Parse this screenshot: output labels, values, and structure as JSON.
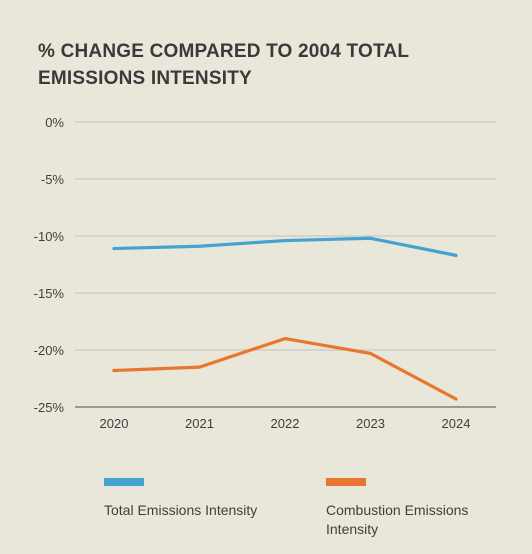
{
  "chart_data": {
    "type": "line",
    "title": "% CHANGE COMPARED TO 2004 TOTAL EMISSIONS INTENSITY",
    "categories": [
      "2020",
      "2021",
      "2022",
      "2023",
      "2024"
    ],
    "y_ticks": [
      "0%",
      "-5%",
      "-10%",
      "-15%",
      "-20%",
      "-25%"
    ],
    "ylim": [
      -25,
      0
    ],
    "grid": true,
    "legend_position": "bottom",
    "series": [
      {
        "name": "Total Emissions Intensity",
        "color": "#45a2d1",
        "values": [
          -11.1,
          -10.9,
          -10.4,
          -10.2,
          -11.7
        ]
      },
      {
        "name": "Combustion Emissions Intensity",
        "color": "#e8762f",
        "values": [
          -21.8,
          -21.5,
          -19.0,
          -20.3,
          -24.3
        ]
      }
    ]
  }
}
